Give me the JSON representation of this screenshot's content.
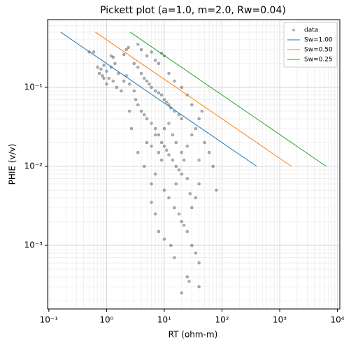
{
  "chart_data": {
    "type": "scatter",
    "title": "Pickett plot (a=1.0, m=2.0, Rw=0.04)",
    "x_label": "RT (ohm-m)",
    "y_label": "PHIE (v/v)",
    "x_scale": "log",
    "y_scale": "log",
    "grid": true,
    "legend": "upper right",
    "xlim": [
      0.095,
      11000
    ],
    "ylim": [
      0.000157,
      0.72
    ],
    "xticks": [
      {
        "value": 0.1,
        "label": "10⁻¹"
      },
      {
        "value": 1,
        "label": "10⁰"
      },
      {
        "value": 10,
        "label": "10¹"
      },
      {
        "value": 100,
        "label": "10²"
      },
      {
        "value": 1000,
        "label": "10³"
      },
      {
        "value": 10000,
        "label": "10⁴"
      }
    ],
    "yticks": [
      {
        "value": 0.001,
        "label": "10⁻³"
      },
      {
        "value": 0.01,
        "label": "10⁻²"
      },
      {
        "value": 0.1,
        "label": "10⁻¹"
      }
    ],
    "series": [
      {
        "name": "data",
        "type": "scatter",
        "color": "#000000",
        "x": [
          0.7,
          0.8,
          0.9,
          0.75,
          0.85,
          1.0,
          1.1,
          1.2,
          1.3,
          1.0,
          0.9,
          1.4,
          1.5,
          1.6,
          1.8,
          2.0,
          2.2,
          2.5,
          1.2,
          1.3,
          0.6,
          0.5,
          2.0,
          2.2,
          2.4,
          3.5,
          4.0,
          5,
          6,
          7,
          9,
          10,
          3,
          3.5,
          4,
          4.5,
          5,
          5.5,
          6,
          7,
          8,
          9,
          10,
          11,
          12,
          13,
          15,
          18,
          20,
          3,
          3.2,
          3.5,
          4,
          4.5,
          5,
          6,
          7,
          8,
          9,
          10,
          11,
          12,
          14,
          16,
          18,
          20,
          25,
          2.5,
          2.7,
          3.5,
          4.5,
          5,
          6,
          7,
          8,
          9,
          10,
          12,
          14,
          16,
          20,
          22,
          25,
          30,
          35,
          40,
          45,
          30,
          25,
          20,
          15,
          12,
          8,
          40,
          50,
          60,
          70,
          80,
          10,
          12,
          15,
          18,
          20,
          22,
          25,
          30,
          35,
          40,
          25,
          20,
          27,
          40,
          15,
          13,
          10,
          8,
          7,
          6,
          30,
          35,
          40,
          28,
          16,
          7,
          6
        ],
        "values": [
          0.18,
          0.17,
          0.19,
          0.15,
          0.14,
          0.16,
          0.13,
          0.18,
          0.12,
          0.11,
          0.13,
          0.2,
          0.1,
          0.15,
          0.09,
          0.12,
          0.14,
          0.11,
          0.25,
          0.24,
          0.28,
          0.28,
          0.26,
          0.3,
          0.32,
          0.35,
          0.3,
          0.25,
          0.28,
          0.22,
          0.27,
          0.25,
          0.2,
          0.18,
          0.15,
          0.13,
          0.12,
          0.11,
          0.1,
          0.09,
          0.085,
          0.08,
          0.07,
          0.065,
          0.06,
          0.055,
          0.05,
          0.045,
          0.04,
          0.09,
          0.07,
          0.06,
          0.05,
          0.045,
          0.04,
          0.035,
          0.03,
          0.025,
          0.02,
          0.018,
          0.016,
          0.014,
          0.012,
          0.01,
          0.009,
          0.008,
          0.007,
          0.05,
          0.03,
          0.015,
          0.01,
          0.02,
          0.018,
          0.025,
          0.015,
          0.012,
          0.03,
          0.035,
          0.025,
          0.02,
          0.015,
          0.012,
          0.018,
          0.025,
          0.03,
          0.04,
          0.05,
          0.06,
          0.08,
          0.1,
          0.12,
          0.15,
          0.2,
          0.012,
          0.02,
          0.015,
          0.01,
          0.005,
          0.005,
          0.004,
          0.003,
          0.0025,
          0.002,
          0.0018,
          0.0015,
          0.001,
          0.0008,
          0.0006,
          0.0004,
          0.00025,
          0.00035,
          0.0003,
          0.0007,
          0.001,
          0.0012,
          0.0015,
          0.0025,
          0.0035,
          0.003,
          0.004,
          0.006,
          0.0045,
          0.006,
          0.008,
          0.006
        ]
      },
      {
        "name": "Sw=1.00",
        "type": "line",
        "color": "#1f77b4",
        "x": [
          0.16,
          400
        ],
        "values": [
          0.5,
          0.01
        ]
      },
      {
        "name": "Sw=0.50",
        "type": "line",
        "color": "#ff7f0e",
        "x": [
          0.64,
          1600
        ],
        "values": [
          0.5,
          0.01
        ]
      },
      {
        "name": "Sw=0.25",
        "type": "line",
        "color": "#2ca02c",
        "x": [
          2.56,
          6400
        ],
        "values": [
          0.5,
          0.01
        ]
      }
    ]
  }
}
